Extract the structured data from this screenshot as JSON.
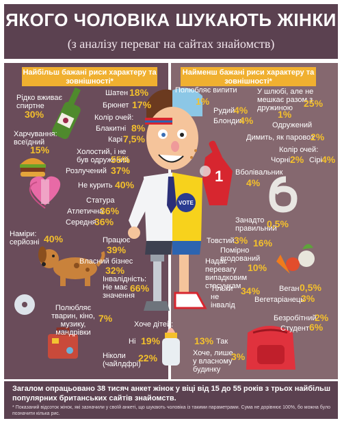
{
  "title": "ЯКОГО ЧОЛОВІКА ШУКАЮТЬ ЖІНКИ",
  "subtitle": "(з аналізу переваг на сайтах знайомств)",
  "left_header": "Найбільш бажані риси характеру та зовнішності*",
  "right_header": "Найменш бажані риси характеру та зовнішності*",
  "left": {
    "drinks_label": "Рідко вживає спиртне",
    "drinks_pct": "30%",
    "diet_label": "Харчування: всеїдний",
    "diet_pct": "15%",
    "hair_brown_label": "Шатен",
    "hair_brown_pct": "18%",
    "hair_brunette_label": "Брюнет",
    "hair_brunette_pct": "17%",
    "eye_label": "Колір очей:",
    "eye_blue_label": "Блакитні",
    "eye_blue_pct": "8%",
    "eye_brown_label": "Карі",
    "eye_brown_pct": "7,5%",
    "single_label": "Холостий, і не був одружений",
    "single_pct": "55%",
    "divorced_label": "Розлучений",
    "divorced_pct": "37%",
    "nosmoke_label": "Не курить",
    "nosmoke_pct": "40%",
    "build_label": "Статура",
    "athletic_label": "Атлетична",
    "athletic_pct": "36%",
    "average_label": "Середня",
    "average_pct": "36%",
    "intent_label": "Наміри: серйозні",
    "intent_pct": "40%",
    "work_label": "Працює",
    "work_pct": "39%",
    "business_label": "Власний бізнес",
    "business_pct": "32%",
    "disability_label": "Інвалідність: Не має значення",
    "disability_pct": "66%",
    "hobby_label": "Полюбляє тварин, кіно, музику, мандрівки",
    "hobby_pct": "7%",
    "kids_label": "Хоче дітей:",
    "kids_no_label": "Ні",
    "kids_no_pct": "19%",
    "kids_never_label": "Ніколи (чайлдфрі)",
    "kids_never_pct": "22%"
  },
  "right": {
    "drinker_label": "Полюбляє випити",
    "drinker_pct": "1%",
    "red_label": "Рудий",
    "red_pct": "4%",
    "blond_label": "Блондин",
    "blond_pct": "4%",
    "married_label": "У шлюбі, але не мешкає разом з дружиною",
    "married_pct": "25%",
    "married2_label": "Одружений",
    "married2_pct": "1%",
    "smoker_label": "Димить, як паровоз",
    "smoker_pct": "2%",
    "eye_label": "Колір очей:",
    "eye_black_label": "Чорні",
    "eye_black_pct": "2%",
    "eye_grey_label": "Сірі",
    "eye_grey_pct": "4%",
    "fan_label": "Вболівальник",
    "fan_pct": "4%",
    "correct_label": "Занадто правильний",
    "correct_pct": "0,5%",
    "fat_label": "Товстий",
    "fat_pct": "3%",
    "chubby_label": "Помірно вгодований",
    "chubby_pct": "16%",
    "casual_label": "Надає перевагу випадковим стосункам",
    "casual_pct": "10%",
    "notdisabled_label": "Тільки не інвалід",
    "notdisabled_pct": "34%",
    "vegan_label": "Веган",
    "vegan_pct": "0,5%",
    "vegetarian_label": "Вегетаріанець",
    "vegetarian_pct": "3%",
    "unemployed_label": "Безробітний",
    "unemployed_pct": "2%",
    "student_label": "Студент",
    "student_pct": "6%",
    "kids_yes_label": "Так",
    "kids_yes_pct": "13%",
    "kids_own_label": "Хоче, лише у власному будинку",
    "kids_own_pct": "3%"
  },
  "badges": {
    "vote": "VOTE",
    "one": "1"
  },
  "footer": {
    "main": "Загалом опрацьовано 38 тисяч анкет жінок у віці від 15 до 55 років з трьох найбільш популярних британських сайтів знайомств.",
    "note": "* Показаний відсоток жінок, які зазначили у своїй анкеті, що шукають чоловіка із такими параметрами. Сума не дорівнює 100%, бо можна було позначити кілька рис."
  },
  "colors": {
    "header": "#5b4150",
    "left_panel": "#6a4c5a",
    "right_panel": "#85686f",
    "accent": "#f4c02c",
    "heading_box": "#f0b030"
  }
}
